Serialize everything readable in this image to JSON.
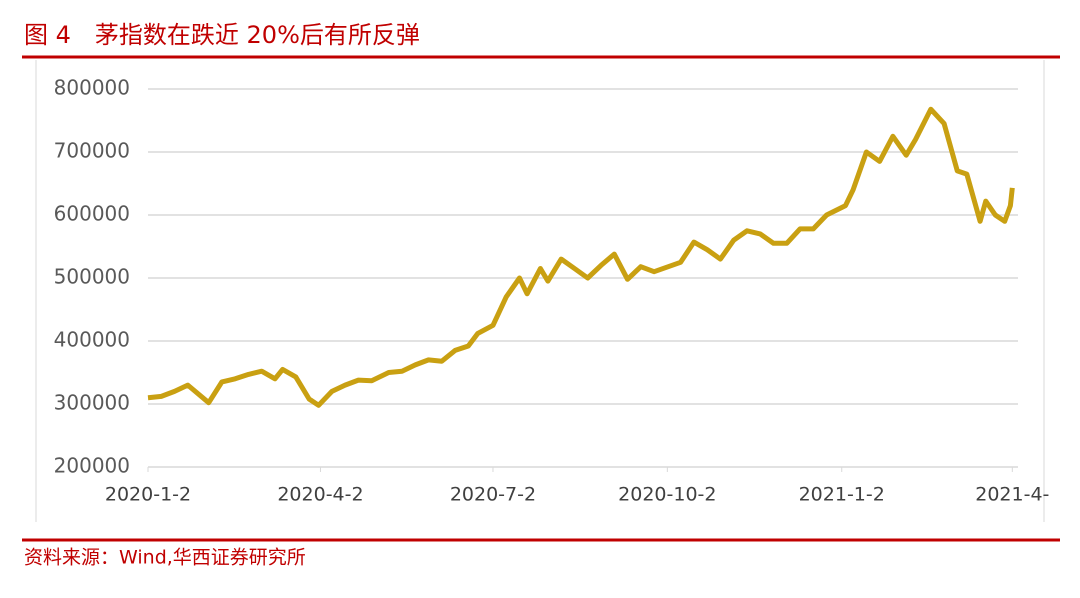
{
  "chart_data": {
    "type": "line",
    "title": "图 4　茅指数在跌近 20%后有所反弹",
    "source": "资料来源：Wind,华西证券研究所",
    "x": [
      "2020-01-02",
      "2020-01-09",
      "2020-01-16",
      "2020-01-23",
      "2020-02-03",
      "2020-02-10",
      "2020-02-17",
      "2020-02-24",
      "2020-03-02",
      "2020-03-09",
      "2020-03-13",
      "2020-03-20",
      "2020-03-27",
      "2020-04-01",
      "2020-04-08",
      "2020-04-15",
      "2020-04-22",
      "2020-04-29",
      "2020-05-08",
      "2020-05-15",
      "2020-05-22",
      "2020-05-29",
      "2020-06-05",
      "2020-06-12",
      "2020-06-19",
      "2020-06-24",
      "2020-07-02",
      "2020-07-09",
      "2020-07-16",
      "2020-07-20",
      "2020-07-27",
      "2020-07-31",
      "2020-08-07",
      "2020-08-14",
      "2020-08-21",
      "2020-08-28",
      "2020-09-04",
      "2020-09-11",
      "2020-09-18",
      "2020-09-25",
      "2020-10-09",
      "2020-10-16",
      "2020-10-23",
      "2020-10-30",
      "2020-11-06",
      "2020-11-13",
      "2020-11-20",
      "2020-11-27",
      "2020-12-04",
      "2020-12-11",
      "2020-12-18",
      "2020-12-25",
      "2021-01-04",
      "2021-01-08",
      "2021-01-15",
      "2021-01-22",
      "2021-01-29",
      "2021-02-05",
      "2021-02-10",
      "2021-02-18",
      "2021-02-25",
      "2021-03-04",
      "2021-03-09",
      "2021-03-16",
      "2021-03-19",
      "2021-03-24",
      "2021-03-29",
      "2021-04-01",
      "2021-04-02"
    ],
    "series": [
      {
        "color": "#c9a012",
        "values": [
          310000,
          312000,
          320000,
          330000,
          302000,
          335000,
          340000,
          347000,
          352000,
          340000,
          355000,
          343000,
          308000,
          298000,
          320000,
          330000,
          338000,
          337000,
          350000,
          352000,
          362000,
          370000,
          368000,
          385000,
          392000,
          412000,
          425000,
          470000,
          500000,
          475000,
          515000,
          495000,
          530000,
          515000,
          500000,
          520000,
          538000,
          498000,
          518000,
          510000,
          525000,
          557000,
          545000,
          530000,
          560000,
          575000,
          570000,
          555000,
          555000,
          578000,
          578000,
          600000,
          615000,
          640000,
          700000,
          685000,
          725000,
          695000,
          720000,
          768000,
          745000,
          670000,
          665000,
          590000,
          622000,
          600000,
          590000,
          615000,
          643000
        ]
      }
    ],
    "xlim": [
      "2020-01-02",
      "2021-04-05"
    ],
    "xticks": [
      {
        "value": "2020-01-02",
        "label": "2020-1-2"
      },
      {
        "value": "2020-04-02",
        "label": "2020-4-2"
      },
      {
        "value": "2020-07-02",
        "label": "2020-7-2"
      },
      {
        "value": "2020-10-02",
        "label": "2020-10-2"
      },
      {
        "value": "2021-01-02",
        "label": "2021-1-2"
      },
      {
        "value": "2021-04-02",
        "label": "2021-4-"
      }
    ],
    "ylim": [
      200000,
      800000
    ],
    "yticks": [
      200000,
      300000,
      400000,
      500000,
      600000,
      700000,
      800000
    ],
    "grid": true
  }
}
